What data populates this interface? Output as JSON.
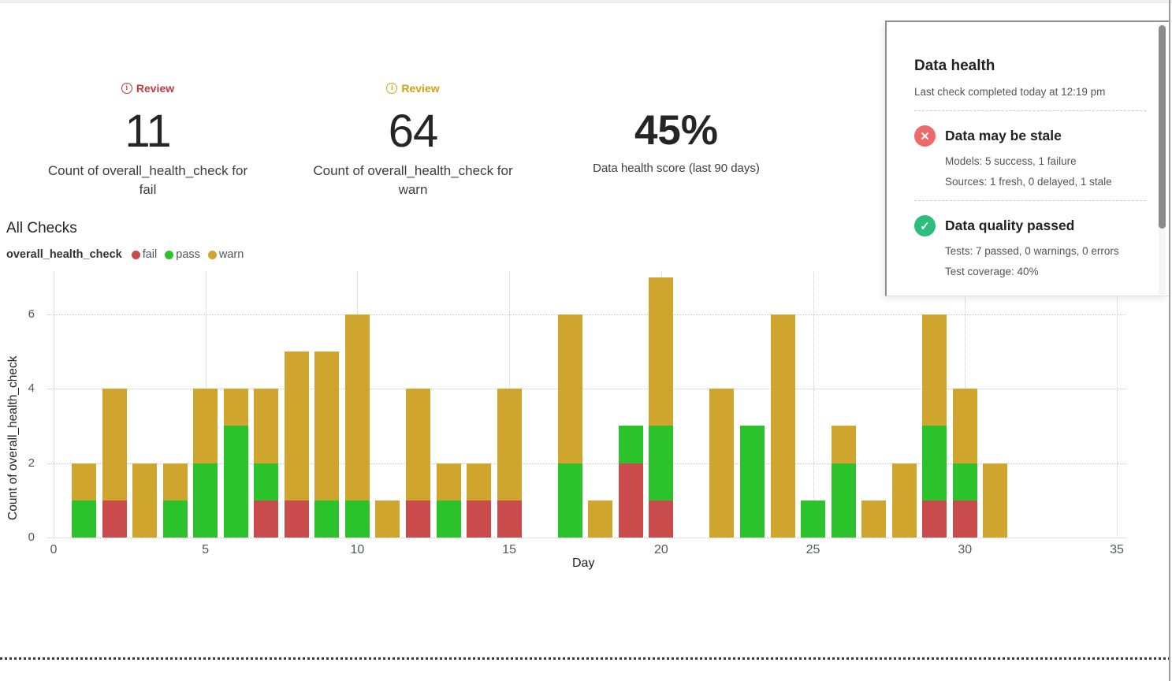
{
  "metrics": [
    {
      "badge": "Review",
      "badge_color": "#bf3a3f",
      "value": "11",
      "caption": "Count of overall_health_check for fail"
    },
    {
      "badge": "Review",
      "badge_color": "#d0a017",
      "value": "64",
      "caption": "Count of overall_health_check for warn"
    },
    {
      "value": "45%",
      "caption": "Data health score (last 90 days)"
    }
  ],
  "section_title": "All Checks",
  "chart_data": {
    "type": "bar",
    "stacked": true,
    "title": "All Checks",
    "legend_label": "overall_health_check",
    "xlabel": "Day",
    "ylabel": "Count of overall_health_check",
    "x": [
      1,
      2,
      3,
      4,
      5,
      6,
      7,
      8,
      9,
      10,
      11,
      12,
      13,
      14,
      15,
      16,
      17,
      18,
      19,
      20,
      21,
      22,
      23,
      24,
      25,
      26,
      27,
      28,
      29,
      30,
      31
    ],
    "series": [
      {
        "name": "fail",
        "color": "#c94b4b",
        "values": [
          0,
          1,
          0,
          0,
          0,
          0,
          1,
          1,
          0,
          0,
          0,
          1,
          0,
          1,
          1,
          0,
          0,
          0,
          2,
          1,
          0,
          0,
          0,
          0,
          0,
          0,
          0,
          0,
          1,
          1,
          0
        ]
      },
      {
        "name": "pass",
        "color": "#2cc22c",
        "values": [
          1,
          0,
          0,
          1,
          2,
          3,
          1,
          0,
          1,
          1,
          0,
          0,
          1,
          0,
          0,
          0,
          2,
          0,
          1,
          2,
          0,
          0,
          3,
          0,
          1,
          2,
          0,
          0,
          2,
          1,
          0
        ]
      },
      {
        "name": "warn",
        "color": "#d0a52e",
        "values": [
          1,
          3,
          2,
          1,
          2,
          1,
          2,
          4,
          4,
          5,
          1,
          3,
          1,
          1,
          3,
          0,
          4,
          1,
          0,
          4,
          0,
          4,
          0,
          6,
          0,
          1,
          1,
          2,
          3,
          2,
          2
        ]
      }
    ],
    "x_ticks": [
      0,
      5,
      10,
      15,
      20,
      25,
      30,
      35
    ],
    "y_ticks": [
      0,
      2,
      4,
      6
    ],
    "xlim": [
      0,
      35
    ],
    "ylim": [
      0,
      7.15
    ],
    "grid": "dotted",
    "legend_position": "top-left"
  },
  "health_panel": {
    "title": "Data health",
    "subtitle": "Last check completed today at 12:19 pm",
    "items": [
      {
        "status": "fail",
        "icon": "x-circle-icon",
        "icon_color": "#ee6a6a",
        "title": "Data may be stale",
        "lines": [
          "Models: 5 success, 1 failure",
          "Sources: 1 fresh, 0 delayed, 1 stale"
        ]
      },
      {
        "status": "pass",
        "icon": "check-circle-icon",
        "icon_color": "#2dbd7d",
        "title": "Data quality passed",
        "lines": [
          "Tests: 7 passed, 0 warnings, 0 errors",
          "Test coverage: 40%"
        ]
      }
    ],
    "icon_glyphs": {
      "fail": "✕",
      "pass": "✓"
    }
  }
}
